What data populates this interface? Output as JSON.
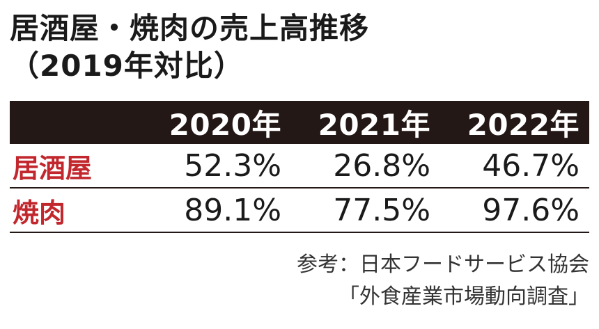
{
  "title": {
    "line1": "居酒屋・焼肉の売上高推移",
    "line2": "（2019年対比）"
  },
  "chart_data": {
    "type": "table",
    "columns": [
      "2020年",
      "2021年",
      "2022年"
    ],
    "rows": [
      {
        "label": "居酒屋",
        "values": [
          "52.3%",
          "26.8%",
          "46.7%"
        ]
      },
      {
        "label": "焼肉",
        "values": [
          "89.1%",
          "77.5%",
          "97.6%"
        ]
      }
    ]
  },
  "source": {
    "line1": "参考：日本フードサービス協会",
    "line2": "「外食産業市場動向調査」"
  },
  "colors": {
    "header_bg": "#231815",
    "row_label": "#c1272d"
  }
}
